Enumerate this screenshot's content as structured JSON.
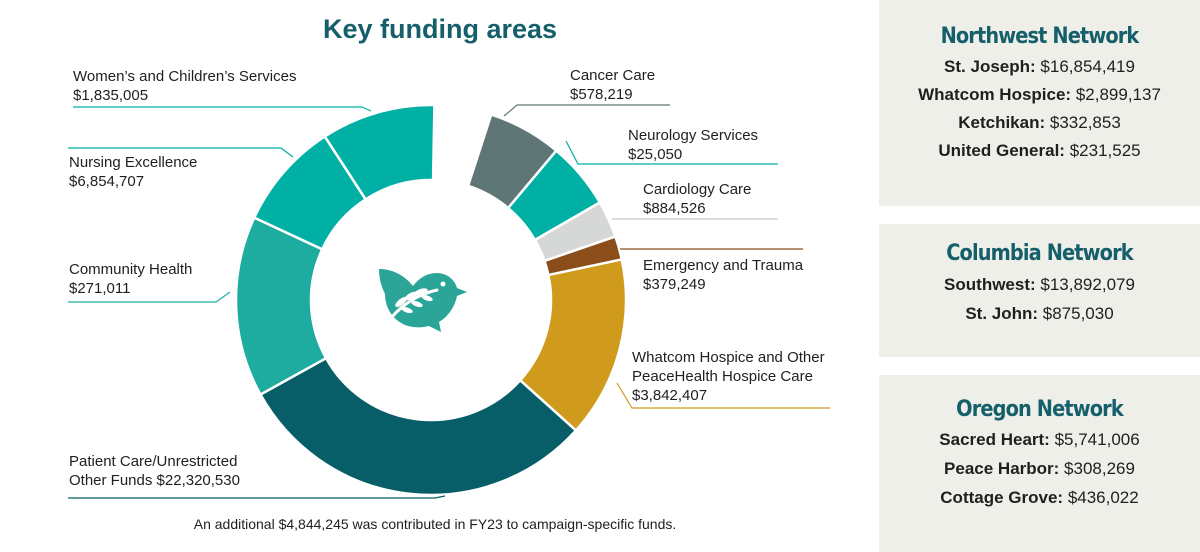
{
  "chart_data": {
    "type": "pie",
    "title": "Key funding areas",
    "slices": [
      {
        "label": "Cancer Care",
        "display_value": "$578,219",
        "value": 578219,
        "color": "#5f7676"
      },
      {
        "label": "Neurology Services",
        "display_value": "$25,050",
        "value": 25050,
        "color": "#00b0a5"
      },
      {
        "label": "Cardiology Care",
        "display_value": "$884,526",
        "value": 884526,
        "color": "#d6d8d7"
      },
      {
        "label": "Emergency and Trauma",
        "display_value": "$379,249",
        "value": 379249,
        "color": "#8b4d1a"
      },
      {
        "label": "Whatcom Hospice and Other PeaceHealth Hospice Care",
        "display_value": "$3,842,407",
        "value": 3842407,
        "color": "#d09b1c"
      },
      {
        "label": "Patient Care/Unrestricted Other Funds",
        "display_value": "$22,320,530",
        "value": 22320530,
        "color": "#075e69"
      },
      {
        "label": "Community Health",
        "display_value": "$271,011",
        "value": 271011,
        "color": "#1eaca1"
      },
      {
        "label": "Nursing Excellence",
        "display_value": "$6,854,707",
        "value": 6854707,
        "color": "#00b0a5"
      },
      {
        "label": "Women’s and Children’s Services",
        "display_value": "$1,835,005",
        "value": 1835005,
        "color": "#00b0a5"
      }
    ],
    "annotation": "An additional $4,844,245 was contributed in FY23 to campaign-specific funds.",
    "center_icon": "dove-icon"
  },
  "networks": [
    {
      "title": "Northwest Network",
      "entries": [
        {
          "name": "St. Joseph:",
          "value": "$16,854,419"
        },
        {
          "name": "Whatcom Hospice:",
          "value": "$2,899,137"
        },
        {
          "name": "Ketchikan:",
          "value": "$332,853"
        },
        {
          "name": "United General:",
          "value": "$231,525"
        }
      ]
    },
    {
      "title": "Columbia Network",
      "entries": [
        {
          "name": "Southwest:",
          "value": "$13,892,079"
        },
        {
          "name": "St. John:",
          "value": "$875,030"
        }
      ]
    },
    {
      "title": "Oregon Network",
      "entries": [
        {
          "name": "Sacred Heart:",
          "value": "$5,741,006"
        },
        {
          "name": "Peace Harbor:",
          "value": "$308,269"
        },
        {
          "name": "Cottage Grove:",
          "value": "$436,022"
        }
      ]
    }
  ]
}
